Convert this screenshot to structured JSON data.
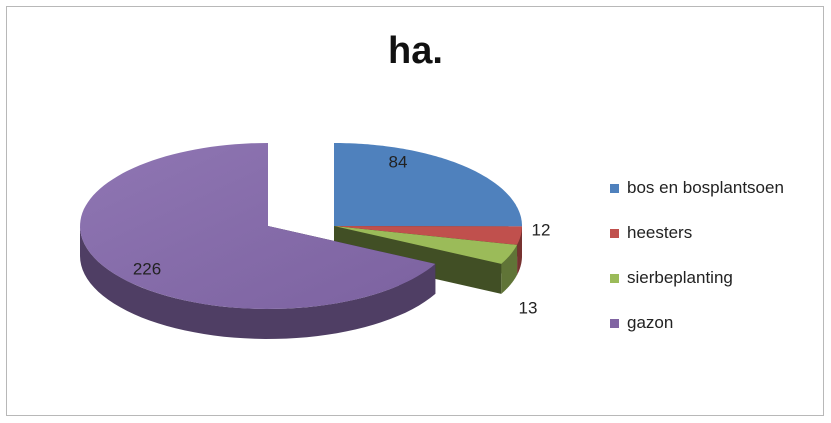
{
  "chart_data": {
    "type": "pie",
    "title": "ha.",
    "legend_position": "right",
    "slices": [
      {
        "label": "bos en bosplantsoen",
        "value": 84,
        "data_label": "84",
        "color": "#4F81BD",
        "exploded": true
      },
      {
        "label": "heesters",
        "value": 12,
        "data_label": "12",
        "color": "#C0504D",
        "exploded": true
      },
      {
        "label": "sierbeplanting",
        "value": 13,
        "data_label": "13",
        "color": "#9BBB59",
        "exploded": true
      },
      {
        "label": "gazon",
        "value": 226,
        "data_label": "226",
        "color": "#8064A2",
        "exploded": false
      }
    ]
  }
}
